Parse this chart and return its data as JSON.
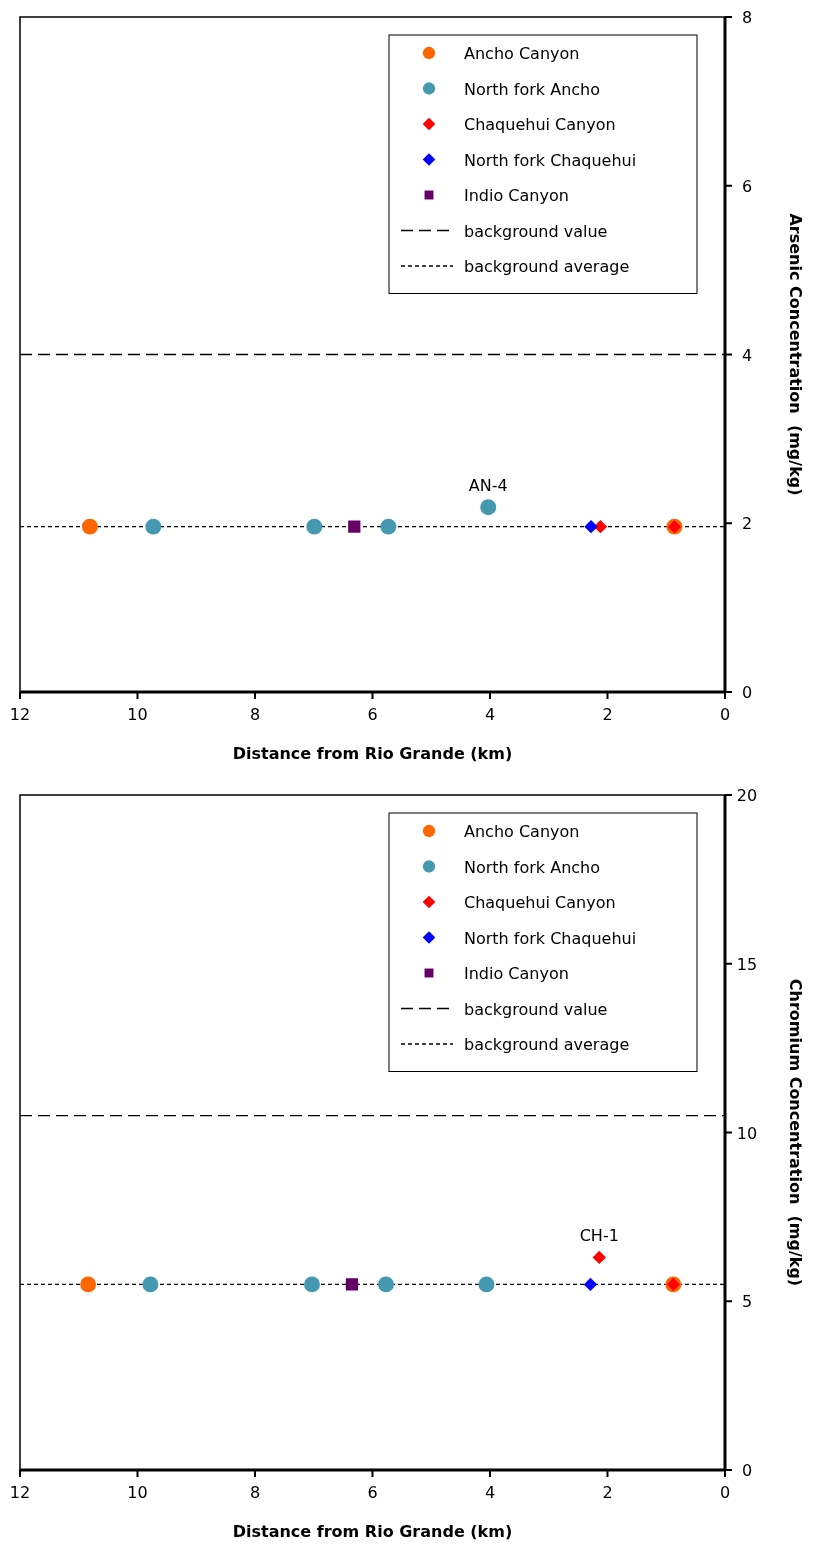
{
  "chart_data": [
    {
      "type": "scatter",
      "xlabel": "Distance from Rio Grande (km)",
      "ylabel": "Arsenic Concentration  (mg/kg)",
      "xlim": [
        12,
        0
      ],
      "xticks": [
        12,
        10,
        8,
        6,
        4,
        2,
        0
      ],
      "ylim": [
        0,
        8
      ],
      "yticks": [
        0,
        2,
        4,
        6,
        8
      ],
      "legend": "top right",
      "grid": false,
      "series": [
        {
          "name": "Ancho Canyon",
          "color": "#ff6600",
          "marker": "circle",
          "x": [
            10.81,
            0.86
          ],
          "values": [
            1.96,
            1.96
          ]
        },
        {
          "name": "North fork Ancho",
          "color": "#4499b0",
          "marker": "circle",
          "x": [
            9.73,
            6.99,
            5.73,
            4.03
          ],
          "values": [
            1.96,
            1.96,
            1.96,
            2.19
          ]
        },
        {
          "name": "Chaquehui Canyon",
          "color": "#ff0000",
          "marker": "diamond",
          "x": [
            2.12,
            0.86
          ],
          "values": [
            1.96,
            1.96
          ]
        },
        {
          "name": "North fork Chaquehui",
          "color": "#0000ff",
          "marker": "diamond",
          "x": [
            2.28
          ],
          "values": [
            1.96
          ]
        },
        {
          "name": "Indio Canyon",
          "color": "#660066",
          "marker": "square",
          "x": [
            6.31
          ],
          "values": [
            1.96
          ]
        }
      ],
      "ref_lines": [
        {
          "axis": "y",
          "value": 4,
          "label": "background value",
          "line_style": "dashed",
          "color": "#000000"
        },
        {
          "axis": "y",
          "value": 1.96,
          "label": "background average",
          "line_style": "dotted",
          "color": "#000000"
        }
      ],
      "annotations": [
        {
          "text": "AN-4",
          "x": 4.03,
          "y": 2.19
        }
      ]
    },
    {
      "type": "scatter",
      "xlabel": "Distance from Rio Grande (km)",
      "ylabel": "Chromium Concentration  (mg/kg)",
      "xlim": [
        12,
        0
      ],
      "xticks": [
        12,
        10,
        8,
        6,
        4,
        2,
        0
      ],
      "ylim": [
        0,
        20
      ],
      "yticks": [
        0,
        5,
        10,
        15,
        20
      ],
      "legend": "top right",
      "grid": false,
      "series": [
        {
          "name": "Ancho Canyon",
          "color": "#ff6600",
          "marker": "circle",
          "x": [
            10.84,
            0.88
          ],
          "values": [
            5.5,
            5.5
          ]
        },
        {
          "name": "North fork Ancho",
          "color": "#4499b0",
          "marker": "circle",
          "x": [
            9.78,
            7.03,
            5.77,
            4.06
          ],
          "values": [
            5.5,
            5.5,
            5.5,
            5.5
          ]
        },
        {
          "name": "Chaquehui Canyon",
          "color": "#ff0000",
          "marker": "diamond",
          "x": [
            2.14,
            0.88
          ],
          "values": [
            6.3,
            5.5
          ]
        },
        {
          "name": "North fork Chaquehui",
          "color": "#0000ff",
          "marker": "diamond",
          "x": [
            2.29
          ],
          "values": [
            5.5
          ]
        },
        {
          "name": "Indio Canyon",
          "color": "#660066",
          "marker": "square",
          "x": [
            6.35
          ],
          "values": [
            5.5
          ]
        }
      ],
      "ref_lines": [
        {
          "axis": "y",
          "value": 10.5,
          "label": "background value",
          "line_style": "dashed",
          "color": "#000000"
        },
        {
          "axis": "y",
          "value": 5.5,
          "label": "background average",
          "line_style": "dotted",
          "color": "#000000"
        }
      ],
      "annotations": [
        {
          "text": "CH-1",
          "x": 2.14,
          "y": 6.3
        }
      ]
    }
  ]
}
